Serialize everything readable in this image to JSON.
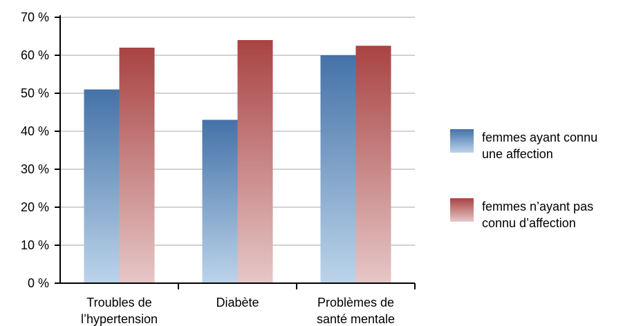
{
  "chart_data": {
    "type": "bar",
    "categories": [
      [
        "Troubles de",
        "l’hypertension"
      ],
      [
        "Diabète"
      ],
      [
        "Problèmes de",
        "santé mentale"
      ]
    ],
    "series": [
      {
        "name": [
          "femmes ayant connu",
          "une affection"
        ],
        "values": [
          51,
          43,
          60
        ],
        "color_top": "#4472a8",
        "color_bottom": "#bcd4ea"
      },
      {
        "name": [
          "femmes n’ayant pas",
          "connu d’affection"
        ],
        "values": [
          62,
          64,
          62.5
        ],
        "color_top": "#a94343",
        "color_bottom": "#e6c7c7"
      }
    ],
    "yticks": [
      "0 %",
      "10 %",
      "20 %",
      "30 %",
      "40 %",
      "50 %",
      "60 %",
      "70 %"
    ],
    "ylim": [
      0,
      70
    ],
    "grid": true,
    "legend": "right"
  }
}
